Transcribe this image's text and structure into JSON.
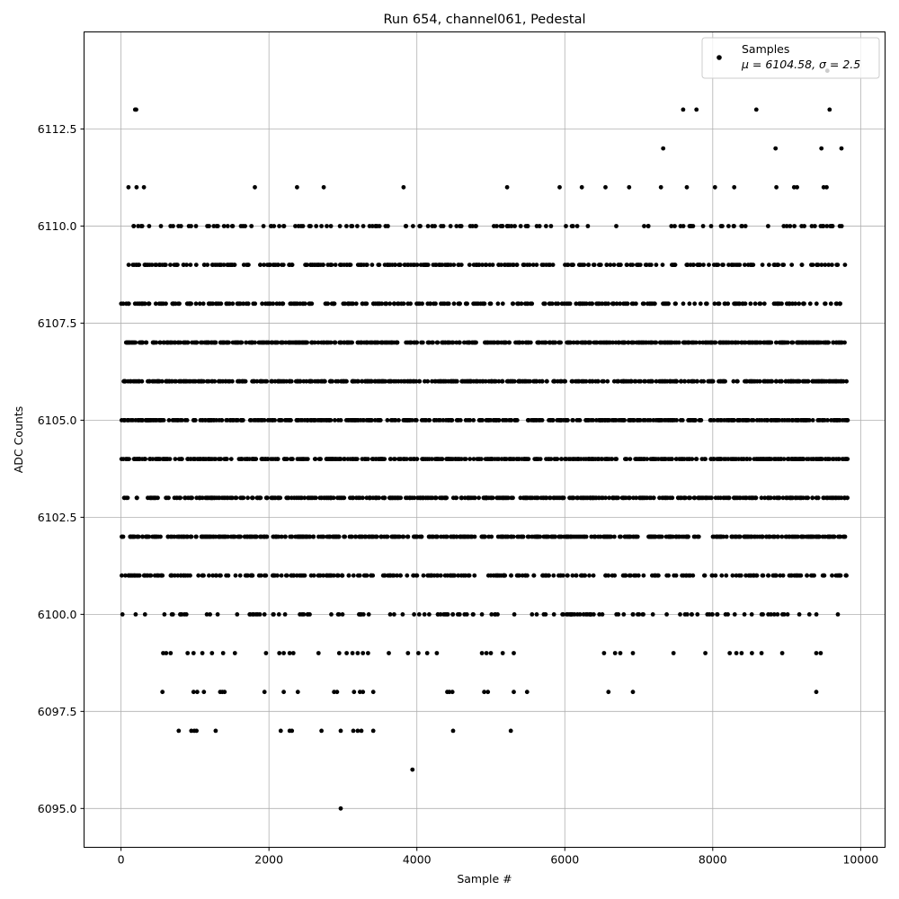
{
  "chart_data": {
    "type": "scatter",
    "title": "Run 654, channel061, Pedestal",
    "xlabel": "Sample #",
    "ylabel": "ADC Counts",
    "xlim": [
      -500,
      10330
    ],
    "ylim": [
      6094.0,
      6115.0
    ],
    "xticks": [
      0,
      2000,
      4000,
      6000,
      8000,
      10000
    ],
    "xtick_labels": [
      "0",
      "2000",
      "4000",
      "6000",
      "8000",
      "10000"
    ],
    "yticks": [
      6095.0,
      6097.5,
      6100.0,
      6102.5,
      6105.0,
      6107.5,
      6110.0,
      6112.5
    ],
    "ytick_labels": [
      "6095.0",
      "6097.5",
      "6100.0",
      "6102.5",
      "6105.0",
      "6107.5",
      "6110.0",
      "6112.5"
    ],
    "grid": true,
    "marker_color": "#000000",
    "legend": {
      "placement": "top-right",
      "label": "Samples",
      "stats": "μ = 6104.58, σ = 2.5"
    },
    "series": [
      {
        "name": "Samples",
        "n_samples": 9830,
        "sample_range": [
          0,
          9830
        ],
        "level_density": {
          "6102": "dense",
          "6103": "dense",
          "6104": "dense",
          "6105": "dense",
          "6106": "dense",
          "6107": "dense",
          "6108": "medium",
          "6109": "medium",
          "6101": "medium",
          "6100": "sparse",
          "6110": "sparse",
          "6099": "rare",
          "6098": "rare",
          "6097": "rare",
          "6111": "rare",
          "6112": "rare",
          "6113": "rare"
        },
        "points": [
          [
            190,
            6113
          ],
          [
            205,
            6113
          ],
          [
            7600,
            6113
          ],
          [
            7780,
            6113
          ],
          [
            8590,
            6113
          ],
          [
            9580,
            6113
          ],
          [
            9550,
            6114
          ],
          [
            7330,
            6112
          ],
          [
            8850,
            6112
          ],
          [
            9470,
            6112
          ],
          [
            9740,
            6112
          ],
          [
            100,
            6111
          ],
          [
            210,
            6111
          ],
          [
            310,
            6111
          ],
          [
            1810,
            6111
          ],
          [
            2380,
            6111
          ],
          [
            2740,
            6111
          ],
          [
            3820,
            6111
          ],
          [
            5220,
            6111
          ],
          [
            5930,
            6111
          ],
          [
            6230,
            6111
          ],
          [
            6550,
            6111
          ],
          [
            6870,
            6111
          ],
          [
            7300,
            6111
          ],
          [
            7650,
            6111
          ],
          [
            8030,
            6111
          ],
          [
            8290,
            6111
          ],
          [
            8860,
            6111
          ],
          [
            9100,
            6111
          ],
          [
            9140,
            6111
          ],
          [
            9500,
            6111
          ],
          [
            9540,
            6111
          ],
          [
            3940,
            6096
          ],
          [
            2970,
            6095
          ],
          [
            780,
            6097
          ],
          [
            950,
            6097
          ],
          [
            990,
            6097
          ],
          [
            1020,
            6097
          ],
          [
            1280,
            6097
          ],
          [
            2160,
            6097
          ],
          [
            2280,
            6097
          ],
          [
            2310,
            6097
          ],
          [
            2710,
            6097
          ],
          [
            2970,
            6097
          ],
          [
            3140,
            6097
          ],
          [
            3200,
            6097
          ],
          [
            3250,
            6097
          ],
          [
            3410,
            6097
          ],
          [
            4490,
            6097
          ],
          [
            5270,
            6097
          ],
          [
            560,
            6098
          ],
          [
            980,
            6098
          ],
          [
            1030,
            6098
          ],
          [
            1120,
            6098
          ],
          [
            1340,
            6098
          ],
          [
            1370,
            6098
          ],
          [
            1400,
            6098
          ],
          [
            1940,
            6098
          ],
          [
            2200,
            6098
          ],
          [
            2390,
            6098
          ],
          [
            2880,
            6098
          ],
          [
            2920,
            6098
          ],
          [
            3150,
            6098
          ],
          [
            3230,
            6098
          ],
          [
            3270,
            6098
          ],
          [
            3410,
            6098
          ],
          [
            4410,
            6098
          ],
          [
            4440,
            6098
          ],
          [
            4480,
            6098
          ],
          [
            4910,
            6098
          ],
          [
            4960,
            6098
          ],
          [
            5310,
            6098
          ],
          [
            5490,
            6098
          ],
          [
            6590,
            6098
          ],
          [
            6920,
            6098
          ],
          [
            9400,
            6098
          ],
          [
            570,
            6099
          ],
          [
            610,
            6099
          ],
          [
            670,
            6099
          ],
          [
            900,
            6099
          ],
          [
            980,
            6099
          ],
          [
            1100,
            6099
          ],
          [
            1230,
            6099
          ],
          [
            1380,
            6099
          ],
          [
            1540,
            6099
          ],
          [
            1960,
            6099
          ],
          [
            2140,
            6099
          ],
          [
            2200,
            6099
          ],
          [
            2280,
            6099
          ],
          [
            2330,
            6099
          ],
          [
            2670,
            6099
          ],
          [
            2950,
            6099
          ],
          [
            3050,
            6099
          ],
          [
            3130,
            6099
          ],
          [
            3200,
            6099
          ],
          [
            3270,
            6099
          ],
          [
            3340,
            6099
          ],
          [
            3620,
            6099
          ],
          [
            3880,
            6099
          ],
          [
            4020,
            6099
          ],
          [
            4140,
            6099
          ],
          [
            4270,
            6099
          ],
          [
            4880,
            6099
          ],
          [
            4940,
            6099
          ],
          [
            5000,
            6099
          ],
          [
            5160,
            6099
          ],
          [
            5310,
            6099
          ],
          [
            6530,
            6099
          ],
          [
            6680,
            6099
          ],
          [
            6750,
            6099
          ],
          [
            6920,
            6099
          ],
          [
            7470,
            6099
          ],
          [
            7900,
            6099
          ],
          [
            8230,
            6099
          ],
          [
            8320,
            6099
          ],
          [
            8390,
            6099
          ],
          [
            8530,
            6099
          ],
          [
            8660,
            6099
          ],
          [
            8940,
            6099
          ],
          [
            9400,
            6099
          ],
          [
            9460,
            6099
          ]
        ]
      }
    ]
  }
}
